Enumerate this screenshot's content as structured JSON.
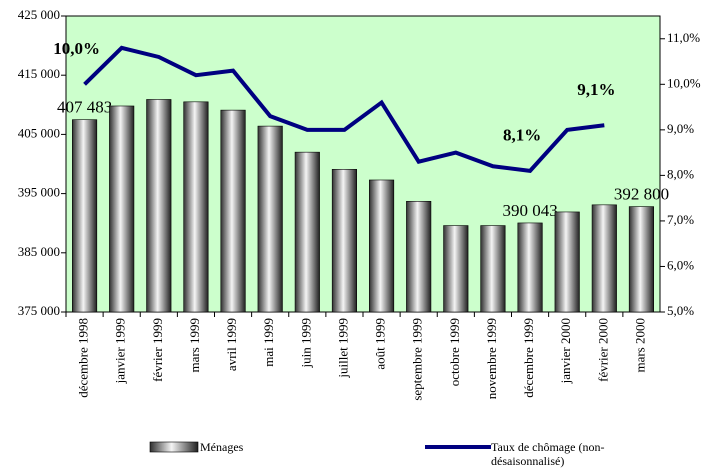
{
  "chart_data": {
    "type": "bar",
    "categories": [
      "décembre 1998",
      "janvier 1999",
      "février 1999",
      "mars 1999",
      "avril 1999",
      "mai 1999",
      "juin 1999",
      "juillet 1999",
      "août 1999",
      "septembre 1999",
      "octobre 1999",
      "novembre 1999",
      "décembre 1999",
      "janvier 2000",
      "février 2000",
      "mars 2000"
    ],
    "series": [
      {
        "name": "Ménages",
        "type": "bar",
        "color": "#808080",
        "values": [
          407483,
          409800,
          410900,
          410500,
          409100,
          406400,
          402000,
          399100,
          397300,
          393700,
          389600,
          389600,
          390043,
          391900,
          393100,
          392800
        ],
        "value_labels": [
          "407 483",
          null,
          null,
          null,
          null,
          null,
          null,
          null,
          null,
          null,
          null,
          null,
          "390 043",
          null,
          null,
          "392 800"
        ]
      },
      {
        "name": "Taux de chômage (non-désaisonnalisé)",
        "type": "line",
        "axis": "y2",
        "color": "#000080",
        "values": [
          10.0,
          10.8,
          10.6,
          10.2,
          10.3,
          9.3,
          9.0,
          9.0,
          9.6,
          8.3,
          8.5,
          8.2,
          8.1,
          9.0,
          9.1,
          null
        ],
        "value_labels": [
          "10,0%",
          null,
          null,
          null,
          null,
          null,
          null,
          null,
          null,
          null,
          null,
          null,
          "8,1%",
          null,
          "9,1%",
          null
        ]
      }
    ],
    "ylim": [
      375000,
      425000
    ],
    "yticks": [
      {
        "value": 375000,
        "label": "375 000"
      },
      {
        "value": 385000,
        "label": "385 000"
      },
      {
        "value": 395000,
        "label": "395 000"
      },
      {
        "value": 405000,
        "label": "405 000"
      },
      {
        "value": 415000,
        "label": "415 000"
      },
      {
        "value": 425000,
        "label": "425 000"
      }
    ],
    "y2lim": [
      5,
      11.5
    ],
    "y2ticks": [
      {
        "value": 5,
        "label": "5,0%"
      },
      {
        "value": 6,
        "label": "6,0%"
      },
      {
        "value": 7,
        "label": "7,0%"
      },
      {
        "value": 8,
        "label": "8,0%"
      },
      {
        "value": 9,
        "label": "9,0%"
      },
      {
        "value": 10,
        "label": "10,0%"
      },
      {
        "value": 11,
        "label": "11,0%"
      }
    ],
    "background": "#ccffcc",
    "grid": false
  }
}
